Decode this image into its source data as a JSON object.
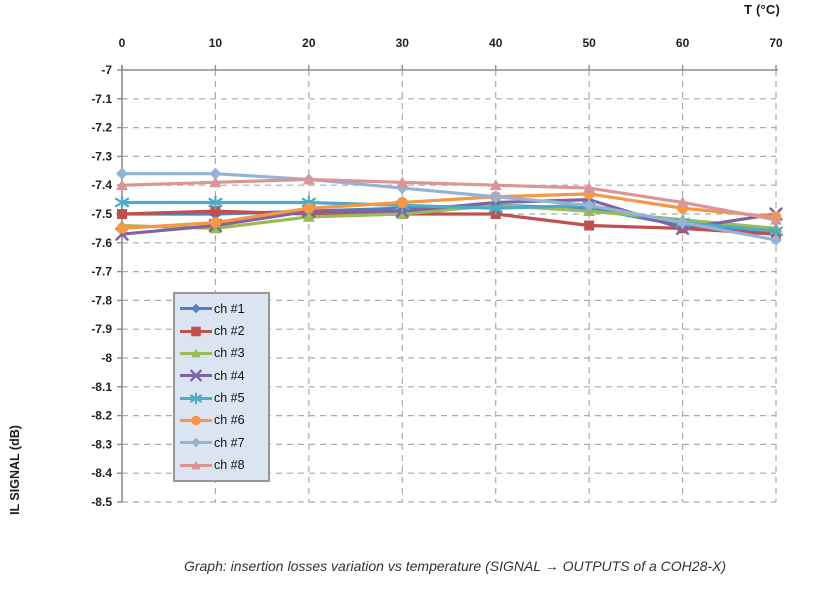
{
  "axis_top_title": "T (°C)",
  "y_axis_title": "IL SIGNAL (dB)",
  "caption": "Graph: insertion losses variation vs temperature (SIGNAL → OUTPUTS of a COH28-X)",
  "style": {
    "grid_color": "#ababab",
    "axis_color": "#8c8c8c",
    "tick_label_color": "#212121",
    "legend_bg": "#dbe5f1",
    "legend_border": "#979797"
  },
  "chart_data": {
    "type": "line",
    "title": "",
    "xlabel": "T (°C)",
    "ylabel": "IL SIGNAL (dB)",
    "x": [
      0,
      10,
      20,
      30,
      40,
      50,
      60,
      70
    ],
    "xlim": [
      0,
      70
    ],
    "x_tick_step": 10,
    "ylim": [
      -8.5,
      -7
    ],
    "y_tick_step": 0.1,
    "grid": "dashed both",
    "legend_position": "inside-left",
    "series": [
      {
        "name": "ch #1",
        "color": "#4F81BD",
        "marker": "diamond",
        "values": [
          -7.5,
          -7.5,
          -7.49,
          -7.48,
          -7.47,
          -7.48,
          -7.54,
          -7.56
        ]
      },
      {
        "name": "ch #2",
        "color": "#C0504D",
        "marker": "square",
        "values": [
          -7.5,
          -7.49,
          -7.5,
          -7.5,
          -7.5,
          -7.54,
          -7.55,
          -7.57
        ]
      },
      {
        "name": "ch #3",
        "color": "#9BBB59",
        "marker": "triangle",
        "values": [
          -7.54,
          -7.55,
          -7.51,
          -7.5,
          -7.47,
          -7.49,
          -7.52,
          -7.55
        ]
      },
      {
        "name": "ch #4",
        "color": "#8064A2",
        "marker": "x",
        "values": [
          -7.57,
          -7.54,
          -7.49,
          -7.49,
          -7.46,
          -7.45,
          -7.55,
          -7.5
        ]
      },
      {
        "name": "ch #5",
        "color": "#4BACC6",
        "marker": "star",
        "values": [
          -7.46,
          -7.46,
          -7.46,
          -7.47,
          -7.48,
          -7.47,
          -7.53,
          -7.56
        ]
      },
      {
        "name": "ch #6",
        "color": "#F79646",
        "marker": "circle",
        "values": [
          -7.55,
          -7.53,
          -7.48,
          -7.46,
          -7.44,
          -7.43,
          -7.48,
          -7.51
        ]
      },
      {
        "name": "ch #7",
        "color": "#95B3D7",
        "marker": "diamond",
        "values": [
          -7.36,
          -7.36,
          -7.38,
          -7.41,
          -7.44,
          -7.47,
          -7.53,
          -7.59
        ]
      },
      {
        "name": "ch #8",
        "color": "#D99694",
        "marker": "triangle",
        "values": [
          -7.4,
          -7.39,
          -7.38,
          -7.39,
          -7.4,
          -7.41,
          -7.46,
          -7.52
        ]
      }
    ]
  }
}
